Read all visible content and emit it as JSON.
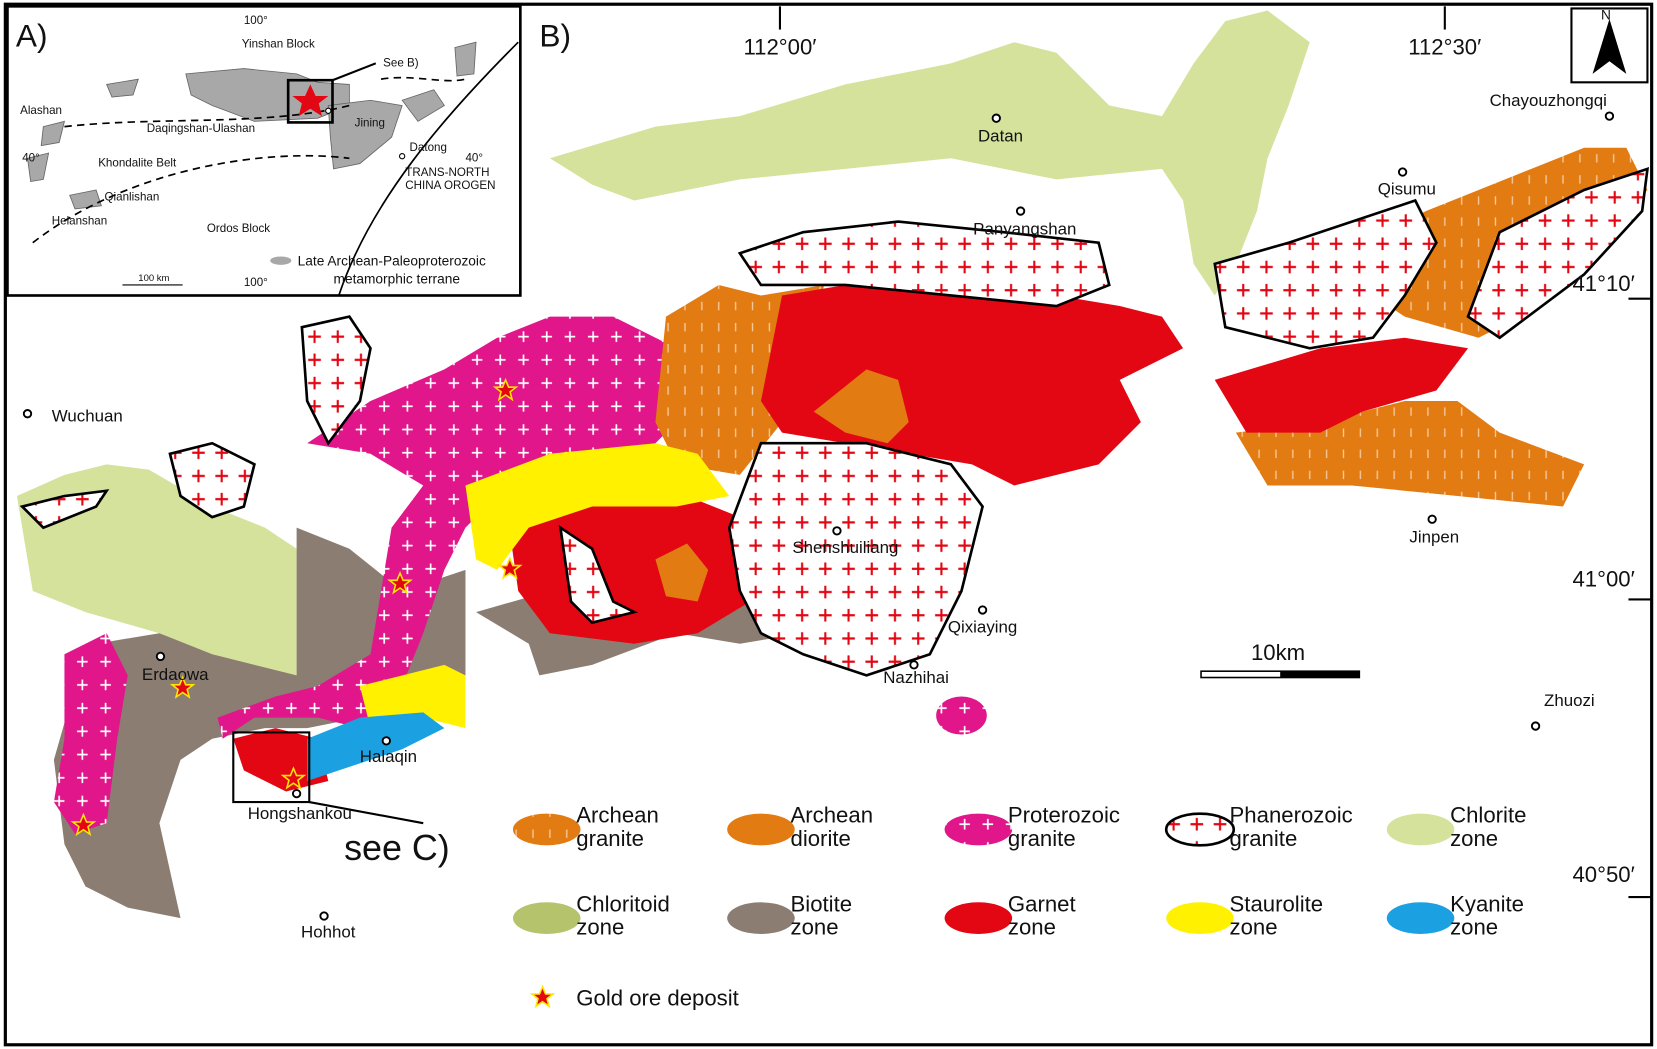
{
  "inset": {
    "panel": "A)",
    "lon_top": "100°",
    "lon_bottom": "100°",
    "lat_left": "40°",
    "lat_right": "40°",
    "yinshan": "Yinshan Block",
    "see_b": "See B)",
    "alashan": "Alashan",
    "daqingshan": "Daqingshan-Ulashan",
    "jining": "Jining",
    "datong": "Datong",
    "khondalite": "Khondalite Belt",
    "qianlishan": "Qianlishan",
    "helanshan": "Helanshan",
    "ordos": "Ordos Block",
    "orogen": [
      "TRANS-NORTH",
      "CHINA OROGEN"
    ],
    "scale": "100 km",
    "legend": [
      "Late Archean-Paleoproterozoic",
      "metamorphic terrane"
    ]
  },
  "map": {
    "panel": "B)",
    "north": "N",
    "longitudes": [
      "112°00′",
      "112°30′"
    ],
    "latitudes": [
      "41°10′",
      "41°00′",
      "40°50′"
    ],
    "places": [
      "Wuchuan",
      "Datan",
      "Panyangshan",
      "Chayouzhongqi",
      "Qisumu",
      "Shenshuiliang",
      "Qixiaying",
      "Nazhihai",
      "Jinpen",
      "Zhuozi",
      "Erdaowa",
      "Halaqin",
      "Hongshankou",
      "Hohhot"
    ],
    "scale": "10km",
    "see_c": "see C)"
  },
  "legend": {
    "items": [
      [
        "Archean",
        "granite"
      ],
      [
        "Archean",
        "diorite"
      ],
      [
        "Proterozoic",
        "granite"
      ],
      [
        "Phanerozoic",
        "granite"
      ],
      [
        "Chlorite",
        "zone"
      ],
      [
        "Chloritoid",
        "zone"
      ],
      [
        "Biotite",
        "zone"
      ],
      [
        "Garnet",
        "zone"
      ],
      [
        "Staurolite",
        "zone"
      ],
      [
        "Kyanite",
        "zone"
      ]
    ],
    "gold": "Gold ore deposit"
  }
}
